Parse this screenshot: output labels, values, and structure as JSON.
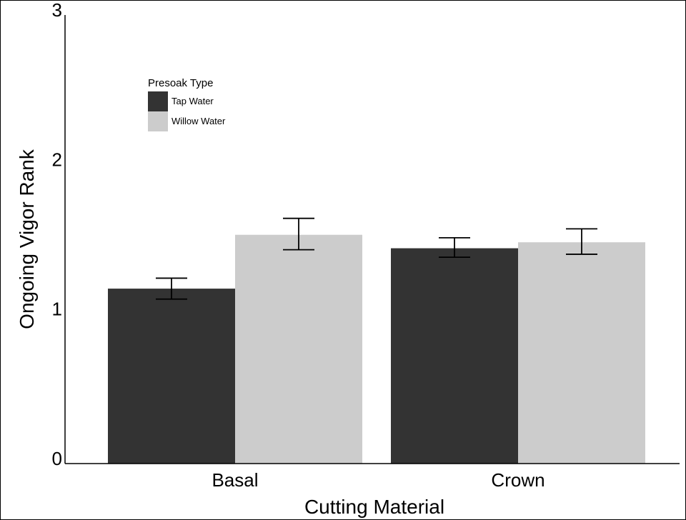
{
  "chart_data": {
    "type": "bar",
    "title": "",
    "xlabel": "Cutting Material",
    "ylabel": "Ongoing Vigor Rank",
    "categories": [
      "Basal",
      "Crown"
    ],
    "ylim": [
      0,
      3
    ],
    "yticks": [
      "0",
      "1",
      "2",
      "3"
    ],
    "grid": false,
    "legend": {
      "title": "Presoak Type",
      "position": "top-left",
      "entries": [
        "Tap Water",
        "Willow Water"
      ]
    },
    "series": [
      {
        "name": "Tap Water",
        "color": "#333333",
        "values": [
          1.17,
          1.44
        ],
        "error_low": [
          1.1,
          1.38
        ],
        "error_high": [
          1.24,
          1.51
        ]
      },
      {
        "name": "Willow Water",
        "color": "#cccccc",
        "values": [
          1.53,
          1.48
        ],
        "error_low": [
          1.43,
          1.4
        ],
        "error_high": [
          1.64,
          1.57
        ]
      }
    ]
  }
}
